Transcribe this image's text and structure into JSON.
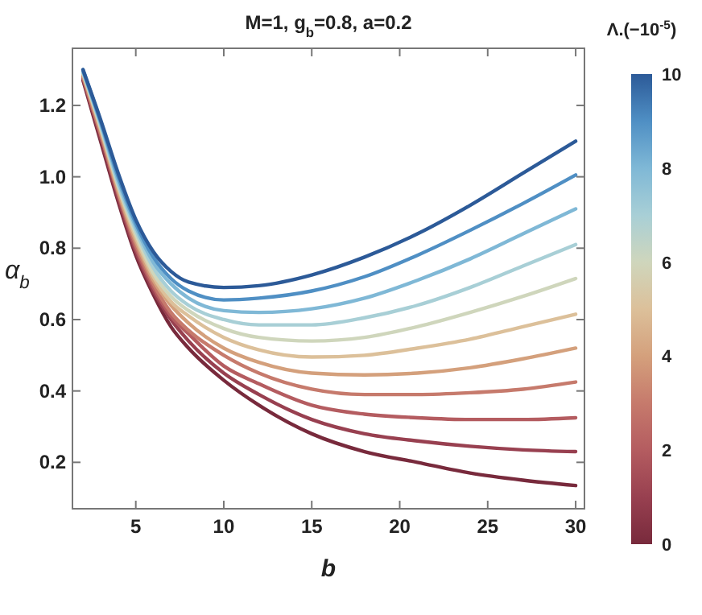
{
  "chart_data": {
    "type": "line",
    "title": "M=1,  g$_{b}$=0.8,  a=0.2",
    "xlabel": "b",
    "ylabel": "α$_{b}$",
    "clabel": "Λ.(−10$^{-5}$)",
    "x": [
      2,
      3,
      4,
      5,
      6,
      7,
      8,
      10,
      12,
      15,
      18,
      21,
      24,
      27,
      30
    ],
    "xlim": [
      1.4,
      30.5
    ],
    "ylim": [
      0.07,
      1.36
    ],
    "xticks": [
      5,
      10,
      15,
      20,
      25,
      30
    ],
    "yticks": [
      0.2,
      0.4,
      0.6,
      0.8,
      {
        "value": 1,
        "label": "1.0"
      },
      1.2
    ],
    "clim": [
      0,
      10
    ],
    "cticks": [
      0,
      2,
      4,
      6,
      8,
      10
    ],
    "grid": false,
    "line_style": "solid",
    "series": [
      {
        "color": "#782a3c",
        "values": [
          1.27,
          1.1,
          0.93,
          0.78,
          0.67,
          0.58,
          0.52,
          0.43,
          0.36,
          0.28,
          0.23,
          0.2,
          0.17,
          0.15,
          0.135
        ]
      },
      {
        "color": "#984050",
        "values": [
          1.275,
          1.11,
          0.94,
          0.79,
          0.68,
          0.6,
          0.54,
          0.45,
          0.39,
          0.32,
          0.28,
          0.26,
          0.245,
          0.235,
          0.23
        ]
      },
      {
        "color": "#b45c60",
        "values": [
          1.28,
          1.12,
          0.95,
          0.8,
          0.69,
          0.61,
          0.56,
          0.47,
          0.42,
          0.36,
          0.335,
          0.325,
          0.32,
          0.32,
          0.325
        ]
      },
      {
        "color": "#c67a6c",
        "values": [
          1.28,
          1.12,
          0.955,
          0.81,
          0.7,
          0.62,
          0.57,
          0.5,
          0.45,
          0.405,
          0.39,
          0.39,
          0.395,
          0.405,
          0.425
        ]
      },
      {
        "color": "#d4a07c",
        "values": [
          1.285,
          1.13,
          0.96,
          0.82,
          0.71,
          0.64,
          0.59,
          0.52,
          0.48,
          0.45,
          0.445,
          0.45,
          0.465,
          0.49,
          0.52
        ]
      },
      {
        "color": "#dcc09a",
        "values": [
          1.29,
          1.135,
          0.97,
          0.83,
          0.72,
          0.65,
          0.61,
          0.55,
          0.515,
          0.495,
          0.5,
          0.52,
          0.545,
          0.58,
          0.615
        ]
      },
      {
        "color": "#cfd6bc",
        "values": [
          1.29,
          1.14,
          0.975,
          0.84,
          0.73,
          0.665,
          0.625,
          0.575,
          0.55,
          0.54,
          0.55,
          0.58,
          0.62,
          0.665,
          0.715
        ]
      },
      {
        "color": "#a8cfd6",
        "values": [
          1.295,
          1.145,
          0.98,
          0.85,
          0.745,
          0.68,
          0.64,
          0.6,
          0.585,
          0.585,
          0.605,
          0.64,
          0.69,
          0.75,
          0.81
        ]
      },
      {
        "color": "#7fb8d6",
        "values": [
          1.295,
          1.15,
          0.99,
          0.86,
          0.76,
          0.7,
          0.66,
          0.625,
          0.62,
          0.63,
          0.66,
          0.71,
          0.77,
          0.84,
          0.91
        ]
      },
      {
        "color": "#4f8fc4",
        "values": [
          1.3,
          1.155,
          1,
          0.87,
          0.775,
          0.715,
          0.68,
          0.655,
          0.66,
          0.68,
          0.72,
          0.78,
          0.85,
          0.925,
          1.005
        ]
      },
      {
        "color": "#2c5a98",
        "values": [
          1.3,
          1.16,
          1.01,
          0.88,
          0.79,
          0.735,
          0.705,
          0.69,
          0.695,
          0.725,
          0.775,
          0.84,
          0.92,
          1.01,
          1.1
        ]
      }
    ]
  }
}
